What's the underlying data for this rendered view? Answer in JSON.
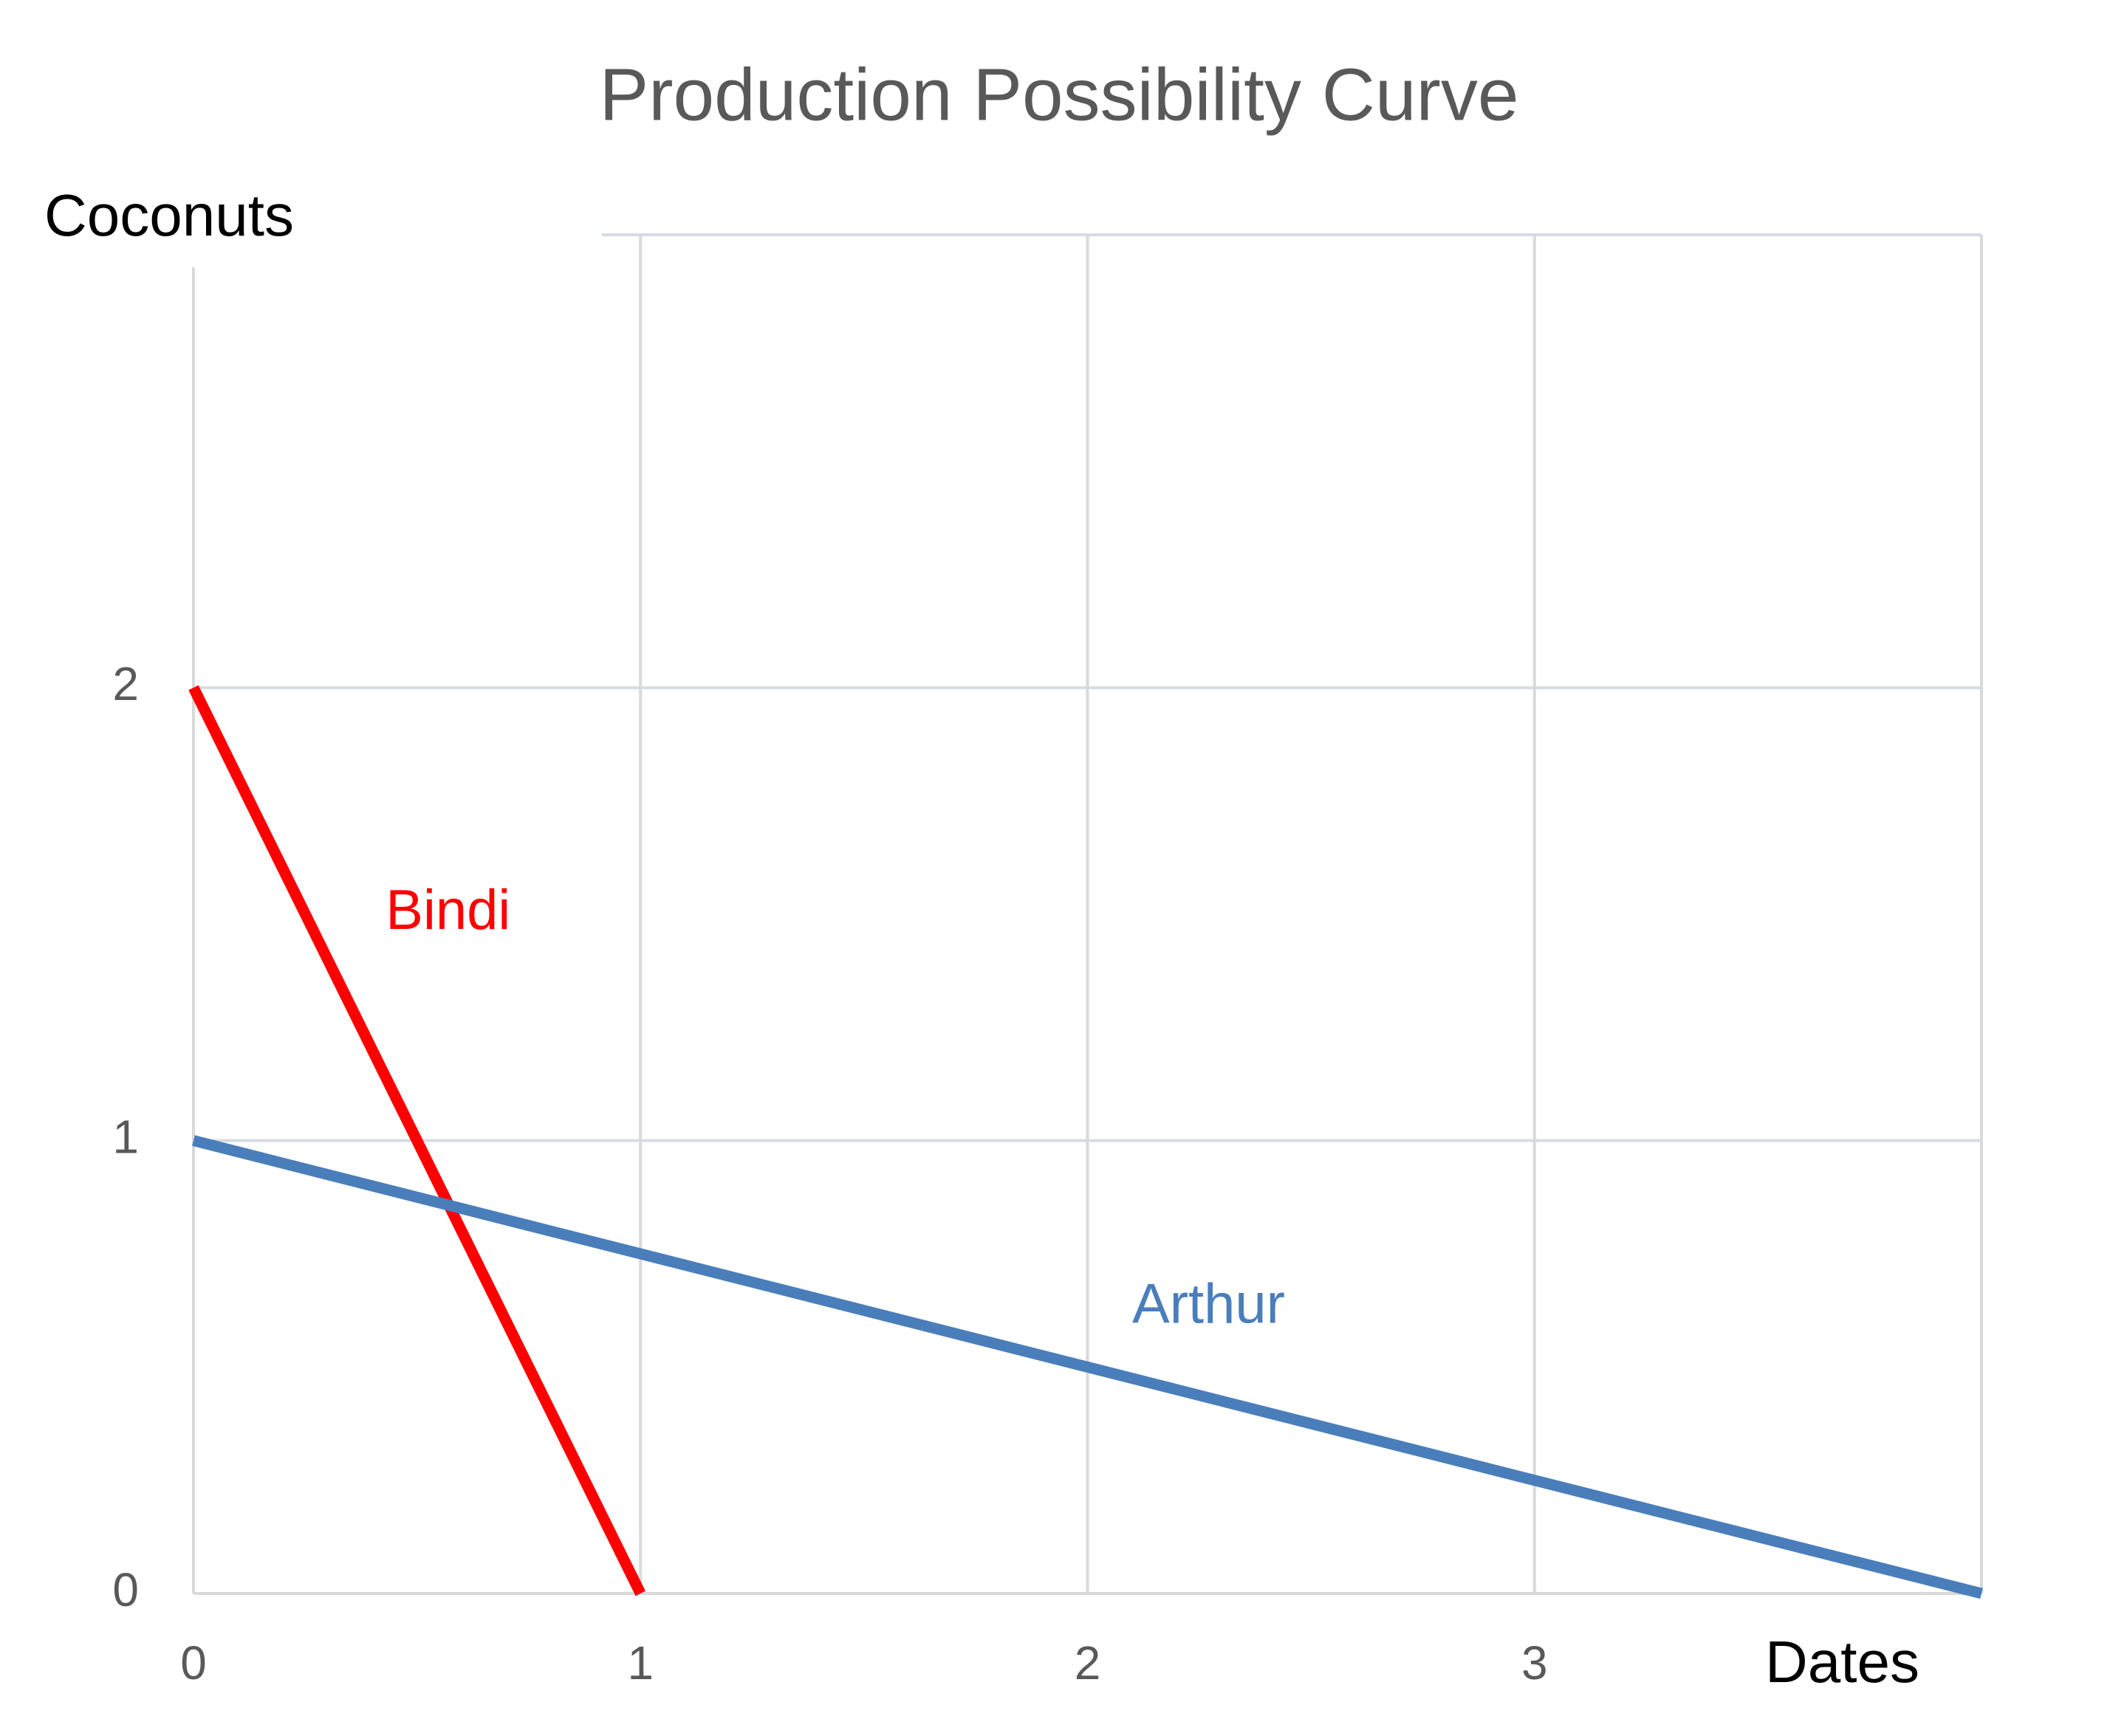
{
  "chart_data": {
    "type": "line",
    "title": "Production Possibility Curve",
    "x_label": "Dates",
    "y_label": "Coconuts",
    "xlim": [
      0,
      4
    ],
    "ylim": [
      0,
      3
    ],
    "xticks": [
      0,
      1,
      2,
      3
    ],
    "yticks": [
      0,
      1,
      2
    ],
    "grid": true,
    "series": [
      {
        "name": "Bindi",
        "color": "#ff0000",
        "x": [
          0,
          1
        ],
        "values": [
          2,
          0
        ]
      },
      {
        "name": "Arthur",
        "color": "#4a7ebb",
        "x": [
          0,
          4
        ],
        "values": [
          1,
          0
        ]
      }
    ],
    "annotations": [
      {
        "text": "Bindi",
        "x": 0.43,
        "y": 1.5,
        "color": "#ff0000"
      },
      {
        "text": "Arthur",
        "x": 2.1,
        "y": 0.63,
        "color": "#4a7ebb"
      }
    ]
  }
}
